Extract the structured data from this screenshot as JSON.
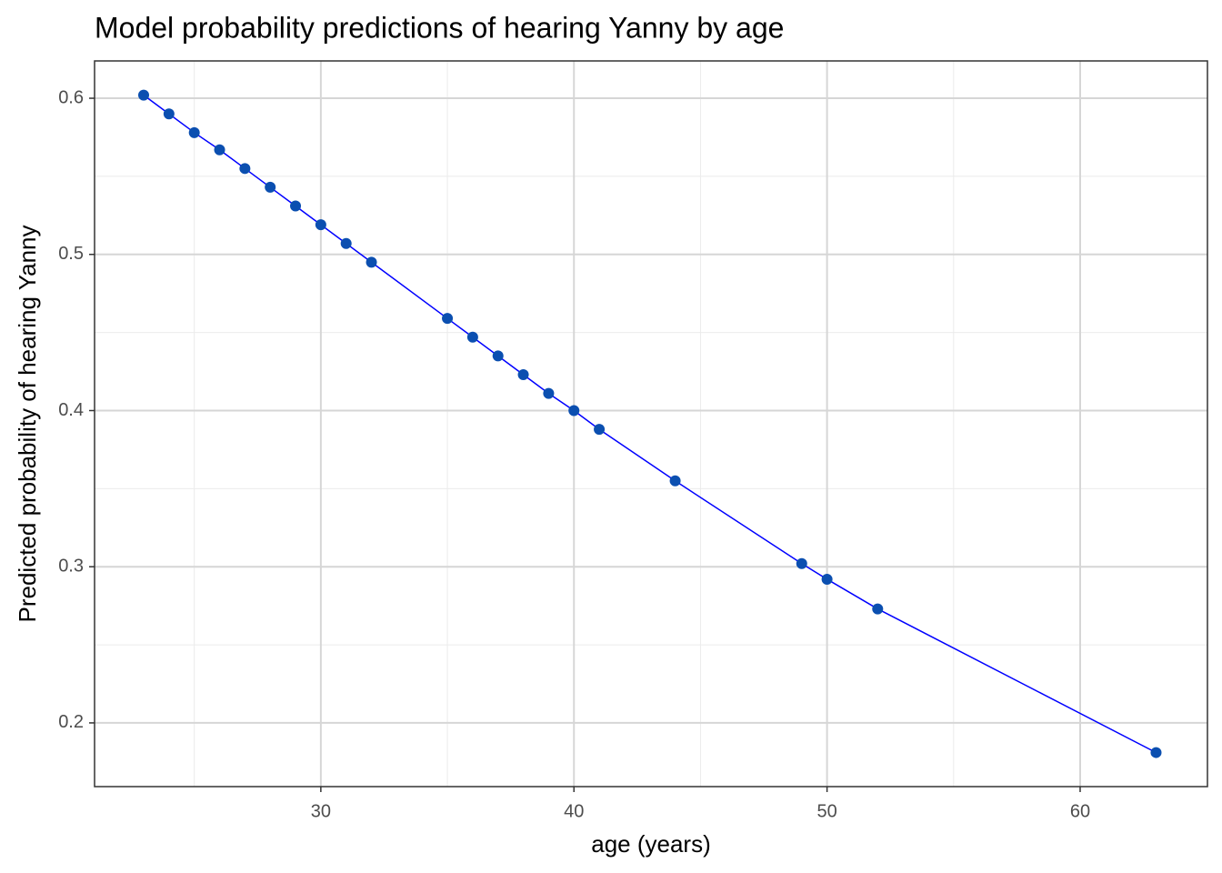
{
  "chart_data": {
    "type": "line",
    "title": "Model probability predictions of hearing Yanny by age",
    "x_label": "age (years)",
    "y_label": "Predicted probability of hearing Yanny",
    "x": [
      23,
      24,
      25,
      26,
      27,
      28,
      29,
      30,
      31,
      32,
      35,
      36,
      37,
      38,
      39,
      40,
      41,
      44,
      49,
      50,
      52,
      63
    ],
    "values": [
      0.602,
      0.59,
      0.578,
      0.567,
      0.555,
      0.543,
      0.531,
      0.519,
      0.507,
      0.495,
      0.459,
      0.447,
      0.435,
      0.423,
      0.411,
      0.4,
      0.388,
      0.355,
      0.302,
      0.292,
      0.273,
      0.181
    ],
    "color": "#0b4fb0",
    "line_color": "#0000ff",
    "xlim": [
      21.06,
      65.03
    ],
    "ylim": [
      0.1592,
      0.6239
    ],
    "xticks": [
      30,
      40,
      50,
      60
    ],
    "yticks": [
      0.2,
      0.3,
      0.4,
      0.5,
      0.6
    ],
    "xminorticks": [
      25,
      35,
      45,
      55
    ],
    "yminorticks": [
      0.25,
      0.35,
      0.45,
      0.55
    ],
    "grid": true
  }
}
